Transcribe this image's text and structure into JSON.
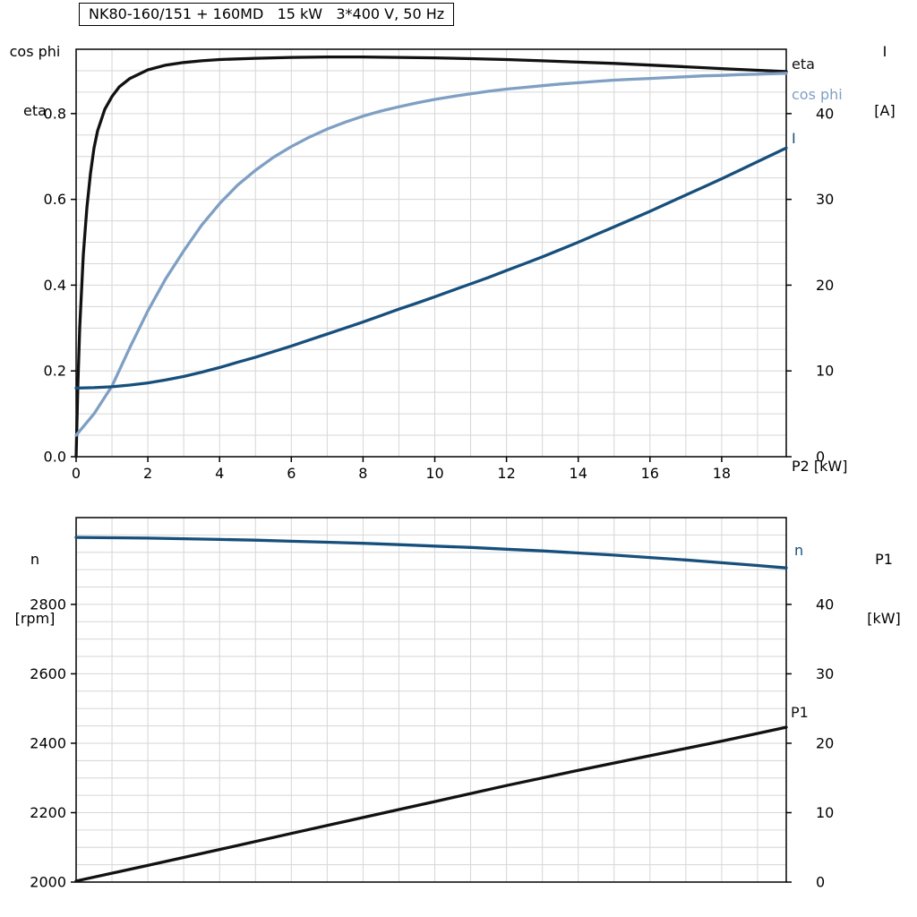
{
  "colors": {
    "eta": "#111111",
    "cos_phi": "#7f9fc3",
    "current": "#174f7c",
    "speed": "#174f7c",
    "p1": "#111111",
    "grid": "#d6d6d6",
    "axis": "#000000",
    "background": "#ffffff"
  },
  "chart_data": [
    {
      "id": "motor-electrical-chart",
      "type": "line",
      "title": "NK80-160/151 + 160MD   15 kW   3*400 V, 50 Hz",
      "xlabel": "P2 [kW]",
      "grid": true,
      "legend_position": "curve-end-labels",
      "x_axis": {
        "min": 0,
        "max": 19.8,
        "minor_step": 1,
        "major_ticks": [
          {
            "v": 0,
            "label": "0"
          },
          {
            "v": 2,
            "label": "2"
          },
          {
            "v": 4,
            "label": "4"
          },
          {
            "v": 6,
            "label": "6"
          },
          {
            "v": 8,
            "label": "8"
          },
          {
            "v": 10,
            "label": "10"
          },
          {
            "v": 12,
            "label": "12"
          },
          {
            "v": 14,
            "label": "14"
          },
          {
            "v": 16,
            "label": "16"
          },
          {
            "v": 18,
            "label": "18"
          }
        ]
      },
      "y_left": {
        "label_lines": [
          "cos phi",
          "eta"
        ],
        "min": 0,
        "max": 0.95,
        "minor_step": 0.05,
        "major_ticks": [
          {
            "v": 0.0,
            "label": "0.0"
          },
          {
            "v": 0.2,
            "label": "0.2"
          },
          {
            "v": 0.4,
            "label": "0.4"
          },
          {
            "v": 0.6,
            "label": "0.6"
          },
          {
            "v": 0.8,
            "label": "0.8"
          }
        ]
      },
      "y_right": {
        "label_lines": [
          "I",
          "[A]"
        ],
        "min": 0,
        "max": 47.5,
        "major_ticks": [
          {
            "v": 0,
            "label": "0"
          },
          {
            "v": 10,
            "label": "10"
          },
          {
            "v": 20,
            "label": "20"
          },
          {
            "v": 30,
            "label": "30"
          },
          {
            "v": 40,
            "label": "40"
          }
        ]
      },
      "series": [
        {
          "name": "eta",
          "label": "eta",
          "axis": "left",
          "color_key": "eta",
          "points": [
            [
              0,
              0
            ],
            [
              0.05,
              0.17
            ],
            [
              0.1,
              0.3
            ],
            [
              0.2,
              0.47
            ],
            [
              0.3,
              0.58
            ],
            [
              0.4,
              0.66
            ],
            [
              0.5,
              0.72
            ],
            [
              0.6,
              0.76
            ],
            [
              0.8,
              0.81
            ],
            [
              1,
              0.84
            ],
            [
              1.2,
              0.862
            ],
            [
              1.5,
              0.882
            ],
            [
              2,
              0.902
            ],
            [
              2.5,
              0.913
            ],
            [
              3,
              0.919
            ],
            [
              3.5,
              0.923
            ],
            [
              4,
              0.926
            ],
            [
              5,
              0.929
            ],
            [
              6,
              0.931
            ],
            [
              7,
              0.932
            ],
            [
              8,
              0.932
            ],
            [
              9,
              0.931
            ],
            [
              10,
              0.93
            ],
            [
              11,
              0.928
            ],
            [
              12,
              0.926
            ],
            [
              13,
              0.923
            ],
            [
              14,
              0.92
            ],
            [
              15,
              0.917
            ],
            [
              16,
              0.913
            ],
            [
              17,
              0.909
            ],
            [
              18,
              0.905
            ],
            [
              19,
              0.901
            ],
            [
              19.8,
              0.898
            ]
          ]
        },
        {
          "name": "cos phi",
          "label": "cos phi",
          "axis": "left",
          "color_key": "cos_phi",
          "points": [
            [
              0,
              0.05
            ],
            [
              0.5,
              0.1
            ],
            [
              1,
              0.165
            ],
            [
              1.5,
              0.255
            ],
            [
              2,
              0.34
            ],
            [
              2.5,
              0.415
            ],
            [
              3,
              0.48
            ],
            [
              3.5,
              0.54
            ],
            [
              4,
              0.59
            ],
            [
              4.5,
              0.633
            ],
            [
              5,
              0.668
            ],
            [
              5.5,
              0.698
            ],
            [
              6,
              0.723
            ],
            [
              6.5,
              0.745
            ],
            [
              7,
              0.764
            ],
            [
              7.5,
              0.78
            ],
            [
              8,
              0.794
            ],
            [
              8.5,
              0.806
            ],
            [
              9,
              0.816
            ],
            [
              9.5,
              0.825
            ],
            [
              10,
              0.833
            ],
            [
              10.5,
              0.84
            ],
            [
              11,
              0.846
            ],
            [
              11.5,
              0.852
            ],
            [
              12,
              0.857
            ],
            [
              12.5,
              0.861
            ],
            [
              13,
              0.865
            ],
            [
              13.5,
              0.869
            ],
            [
              14,
              0.872
            ],
            [
              14.5,
              0.875
            ],
            [
              15,
              0.878
            ],
            [
              15.5,
              0.88
            ],
            [
              16,
              0.882
            ],
            [
              16.5,
              0.884
            ],
            [
              17,
              0.886
            ],
            [
              17.5,
              0.888
            ],
            [
              18,
              0.889
            ],
            [
              18.5,
              0.891
            ],
            [
              19,
              0.892
            ],
            [
              19.8,
              0.894
            ]
          ]
        },
        {
          "name": "I",
          "label": "I",
          "axis": "right",
          "color_key": "current",
          "points": [
            [
              0,
              8.0
            ],
            [
              0.5,
              8.05
            ],
            [
              1,
              8.15
            ],
            [
              1.5,
              8.35
            ],
            [
              2,
              8.6
            ],
            [
              2.5,
              8.95
            ],
            [
              3,
              9.35
            ],
            [
              3.5,
              9.85
            ],
            [
              4,
              10.4
            ],
            [
              4.5,
              11.0
            ],
            [
              5,
              11.6
            ],
            [
              5.5,
              12.25
            ],
            [
              6,
              12.9
            ],
            [
              6.5,
              13.6
            ],
            [
              7,
              14.3
            ],
            [
              7.5,
              15.0
            ],
            [
              8,
              15.7
            ],
            [
              8.5,
              16.45
            ],
            [
              9,
              17.2
            ],
            [
              9.5,
              17.9
            ],
            [
              10,
              18.65
            ],
            [
              10.5,
              19.4
            ],
            [
              11,
              20.15
            ],
            [
              11.5,
              20.9
            ],
            [
              12,
              21.7
            ],
            [
              12.5,
              22.5
            ],
            [
              13,
              23.3
            ],
            [
              13.5,
              24.15
            ],
            [
              14,
              25.0
            ],
            [
              14.5,
              25.9
            ],
            [
              15,
              26.8
            ],
            [
              15.5,
              27.7
            ],
            [
              16,
              28.6
            ],
            [
              16.5,
              29.55
            ],
            [
              17,
              30.5
            ],
            [
              17.5,
              31.45
            ],
            [
              18,
              32.4
            ],
            [
              18.5,
              33.4
            ],
            [
              19,
              34.4
            ],
            [
              19.8,
              36.0
            ]
          ]
        }
      ]
    },
    {
      "id": "speed-power-chart",
      "type": "line",
      "title": "",
      "xlabel": "",
      "grid": true,
      "legend_position": "curve-end-labels",
      "x_axis": {
        "min": 0,
        "max": 19.8,
        "minor_step": 1,
        "major_ticks": []
      },
      "y_left": {
        "label_lines": [
          "n",
          "[rpm]"
        ],
        "min": 2000,
        "max": 3050,
        "minor_step": 50,
        "major_ticks": [
          {
            "v": 2000,
            "label": "2000"
          },
          {
            "v": 2200,
            "label": "2200"
          },
          {
            "v": 2400,
            "label": "2400"
          },
          {
            "v": 2600,
            "label": "2600"
          },
          {
            "v": 2800,
            "label": "2800"
          }
        ]
      },
      "y_right": {
        "label_lines": [
          "P1",
          "[kW]"
        ],
        "min": 0,
        "max": 52.5,
        "major_ticks": [
          {
            "v": 0,
            "label": "0"
          },
          {
            "v": 10,
            "label": "10"
          },
          {
            "v": 20,
            "label": "20"
          },
          {
            "v": 30,
            "label": "30"
          },
          {
            "v": 40,
            "label": "40"
          }
        ]
      },
      "series": [
        {
          "name": "n",
          "label": "n",
          "axis": "left",
          "color_key": "speed",
          "points": [
            [
              0,
              2993
            ],
            [
              1,
              2992
            ],
            [
              2,
              2991
            ],
            [
              3,
              2989
            ],
            [
              4,
              2987
            ],
            [
              5,
              2985
            ],
            [
              6,
              2982
            ],
            [
              7,
              2979
            ],
            [
              8,
              2976
            ],
            [
              9,
              2972
            ],
            [
              10,
              2968
            ],
            [
              11,
              2964
            ],
            [
              12,
              2959
            ],
            [
              13,
              2954
            ],
            [
              14,
              2948
            ],
            [
              15,
              2942
            ],
            [
              16,
              2935
            ],
            [
              17,
              2928
            ],
            [
              18,
              2920
            ],
            [
              19,
              2912
            ],
            [
              19.8,
              2905
            ]
          ]
        },
        {
          "name": "P1",
          "label": "P1",
          "axis": "right",
          "color_key": "p1",
          "points": [
            [
              0,
              0.15
            ],
            [
              2,
              2.4
            ],
            [
              4,
              4.7
            ],
            [
              6,
              7.0
            ],
            [
              8,
              9.3
            ],
            [
              10,
              11.6
            ],
            [
              12,
              13.9
            ],
            [
              14,
              16.1
            ],
            [
              16,
              18.2
            ],
            [
              18,
              20.3
            ],
            [
              19.8,
              22.3
            ]
          ]
        }
      ]
    }
  ],
  "labels": {
    "chart1_xlabel": "P2 [kW]",
    "chart1_curve_eta": "eta",
    "chart1_curve_cosphi": "cos phi",
    "chart1_curve_I": "I",
    "chart2_curve_n": "n",
    "chart2_curve_P1": "P1"
  }
}
